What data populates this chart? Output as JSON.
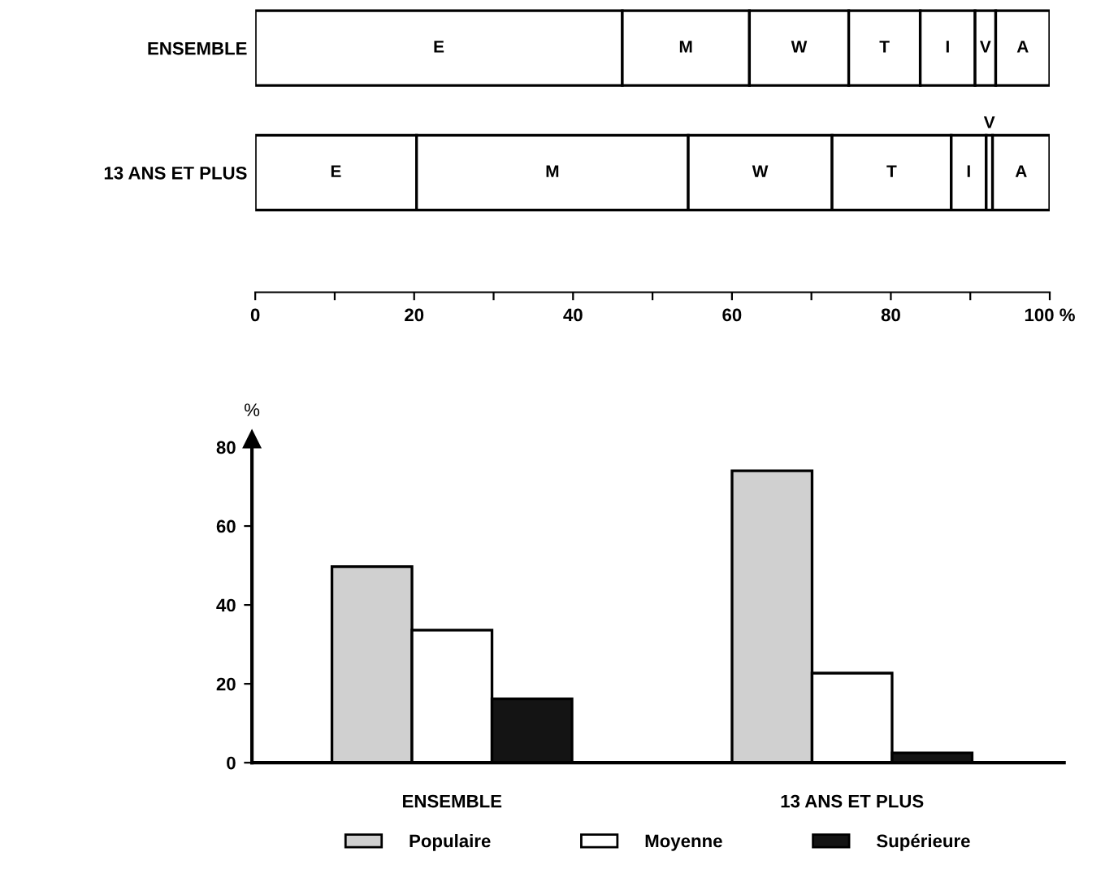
{
  "chart_data": [
    {
      "type": "bar",
      "orientation": "horizontal",
      "stacked": true,
      "categories": [
        "ENSEMBLE",
        "13 ANS ET PLUS"
      ],
      "series": [
        {
          "name": "E",
          "color": "#ffffff",
          "values": [
            46.2,
            20.3
          ]
        },
        {
          "name": "M",
          "color": "#ffffff",
          "values": [
            16.0,
            34.2
          ]
        },
        {
          "name": "W",
          "color": "#ffffff",
          "values": [
            12.5,
            18.1
          ]
        },
        {
          "name": "T",
          "color": "#ffffff",
          "values": [
            9.0,
            15.0
          ]
        },
        {
          "name": "I",
          "color": "#ffffff",
          "values": [
            6.9,
            4.4
          ]
        },
        {
          "name": "V",
          "color": "#ffffff",
          "values": [
            2.6,
            0.8
          ]
        },
        {
          "name": "A",
          "color": "#ffffff",
          "values": [
            6.8,
            7.2
          ]
        }
      ],
      "xlim": [
        0,
        100
      ],
      "xticks": [
        0,
        {
          "value": 10,
          "label": null
        },
        20,
        {
          "value": 30,
          "label": null
        },
        40,
        {
          "value": 50,
          "label": null
        },
        60,
        {
          "value": 70,
          "label": null
        },
        80,
        {
          "value": 90,
          "label": null
        },
        {
          "value": 100,
          "label": "100 %"
        }
      ],
      "grid": false
    },
    {
      "type": "bar",
      "categories": [
        "ENSEMBLE",
        "13 ANS ET PLUS"
      ],
      "ylabel": "%",
      "series": [
        {
          "name": "Populaire",
          "color": "#d0d0d0",
          "values": [
            49.7,
            74.0
          ]
        },
        {
          "name": "Moyenne",
          "color": "#ffffff",
          "values": [
            33.6,
            22.7
          ]
        },
        {
          "name": "Supérieure",
          "color": "#141414",
          "values": [
            16.2,
            2.5
          ]
        }
      ],
      "ylim": [
        0,
        82
      ],
      "yticks": [
        0,
        20,
        40,
        60,
        80
      ],
      "grid": false,
      "legend": "bottom"
    }
  ]
}
